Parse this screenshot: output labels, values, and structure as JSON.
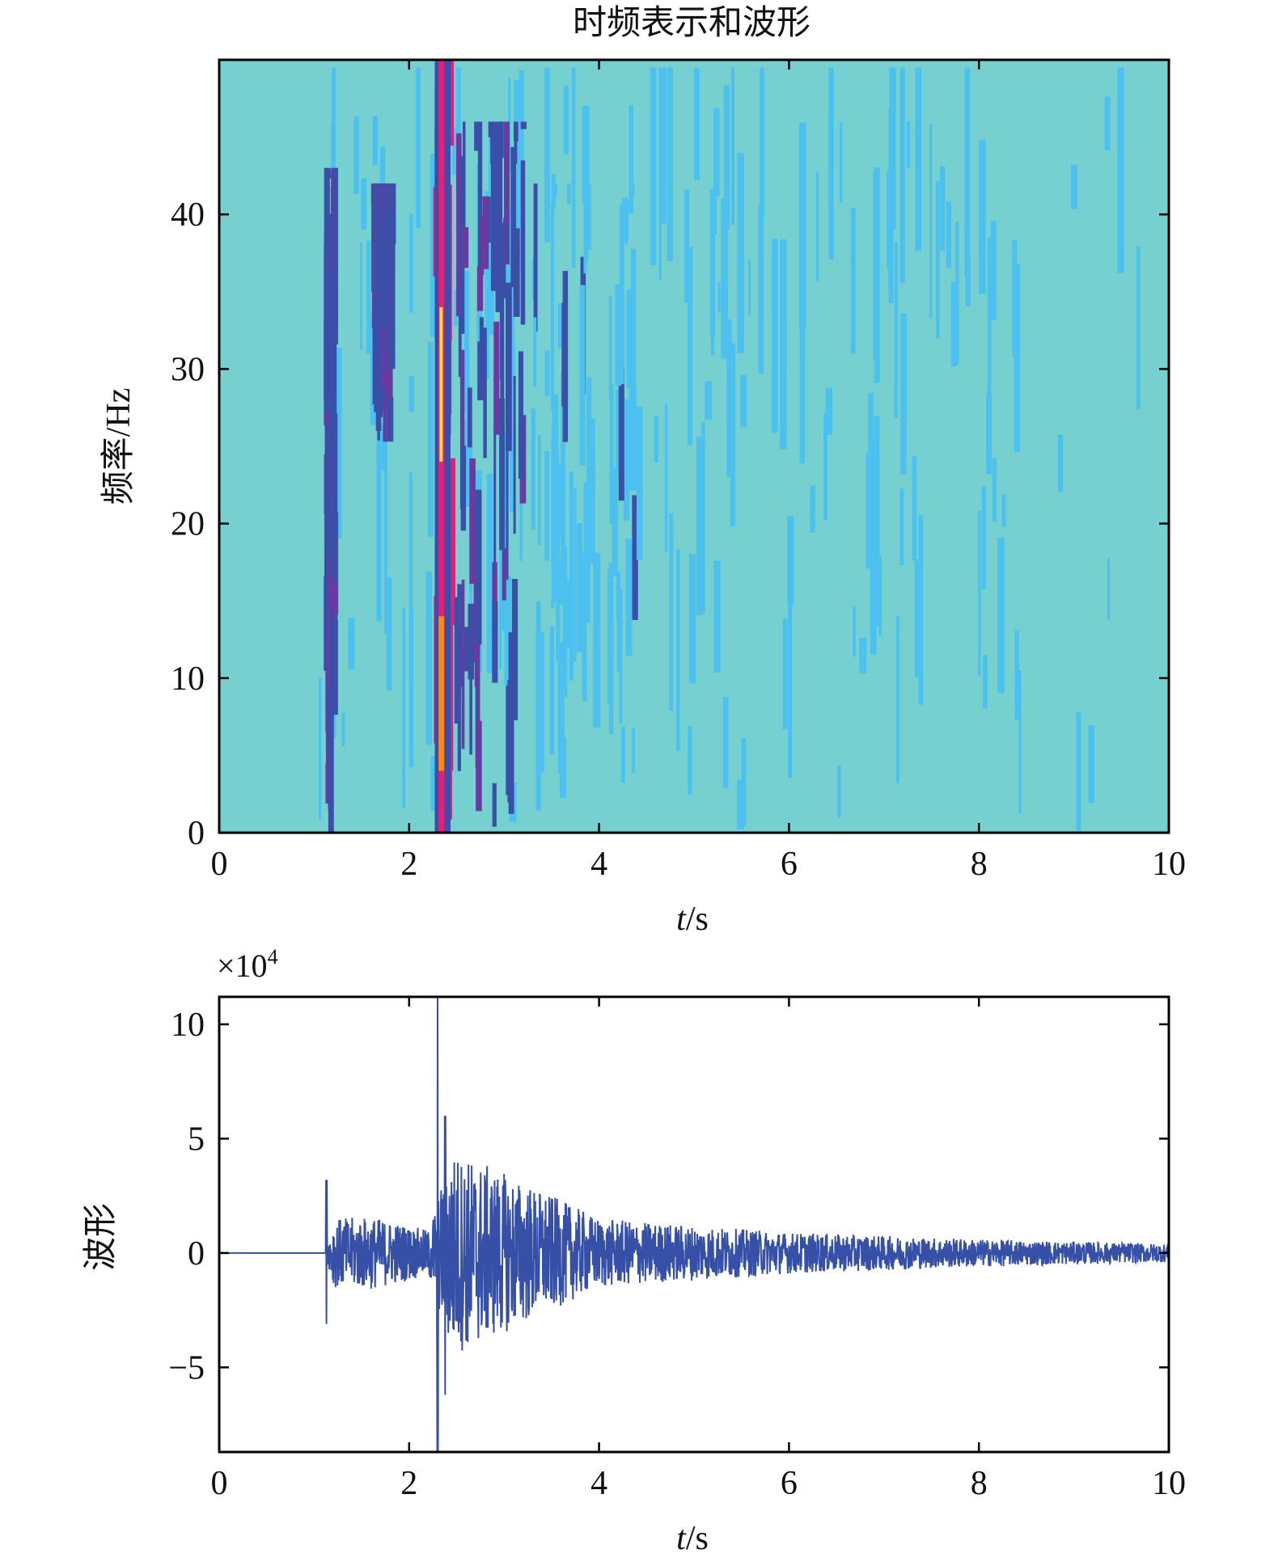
{
  "figure": {
    "title": "时频表示和波形"
  },
  "chart_data": [
    {
      "type": "heatmap",
      "title": "时频表示和波形",
      "xlabel_var": "t",
      "xlabel_unit": "/s",
      "ylabel": "频率/Hz",
      "xlim": [
        0,
        10
      ],
      "ylim": [
        0,
        50
      ],
      "xticks": [
        0,
        2,
        4,
        6,
        8,
        10
      ],
      "yticks": [
        0,
        10,
        20,
        30,
        40
      ],
      "grid": false,
      "colors": {
        "background": "#77d0d0",
        "low": "#4cc0ee",
        "mid": "#3b4ea8",
        "high": "#e0207a",
        "peak": "#f0e040"
      },
      "energy_bands": [
        {
          "t_start": 1.1,
          "t_end": 1.2,
          "f_min": 0,
          "f_max": 43,
          "level": "mid"
        },
        {
          "t_start": 1.6,
          "t_end": 1.8,
          "f_min": 25,
          "f_max": 42,
          "level": "mid"
        },
        {
          "t_start": 2.25,
          "t_end": 2.45,
          "f_min": 0,
          "f_max": 50,
          "level": "high"
        },
        {
          "t_start": 2.45,
          "t_end": 3.2,
          "f_min": 0,
          "f_max": 46,
          "level": "mid"
        },
        {
          "t_start": 3.2,
          "t_end": 4.4,
          "f_min": 5,
          "f_max": 42,
          "level": "low"
        }
      ]
    },
    {
      "type": "line",
      "xlabel_var": "t",
      "xlabel_unit": "/s",
      "ylabel": "波形",
      "exponent_label": "×10",
      "exponent_power": "4",
      "xlim": [
        0,
        10
      ],
      "ylim": [
        -8.7,
        11.2
      ],
      "xticks": [
        0,
        2,
        4,
        6,
        8,
        10
      ],
      "yticks": [
        -5,
        0,
        5,
        10
      ],
      "grid": false,
      "line_color": "#3650a8",
      "events": [
        {
          "t": 1.13,
          "peak_pos": 3.2,
          "peak_neg": -3.1
        },
        {
          "t": 2.3,
          "peak_pos": 11.2,
          "peak_neg": -8.7
        },
        {
          "t": 2.38,
          "peak_pos": 6.0,
          "peak_neg": -6.2
        }
      ],
      "envelope": [
        {
          "t": 0.0,
          "amp": 0.0
        },
        {
          "t": 1.12,
          "amp": 0.0
        },
        {
          "t": 1.2,
          "amp": 1.5
        },
        {
          "t": 1.6,
          "amp": 1.6
        },
        {
          "t": 2.2,
          "amp": 1.0
        },
        {
          "t": 2.45,
          "amp": 4.5
        },
        {
          "t": 3.0,
          "amp": 3.5
        },
        {
          "t": 4.0,
          "amp": 1.5
        },
        {
          "t": 6.0,
          "amp": 0.9
        },
        {
          "t": 8.0,
          "amp": 0.6
        },
        {
          "t": 10.0,
          "amp": 0.4
        }
      ]
    }
  ]
}
